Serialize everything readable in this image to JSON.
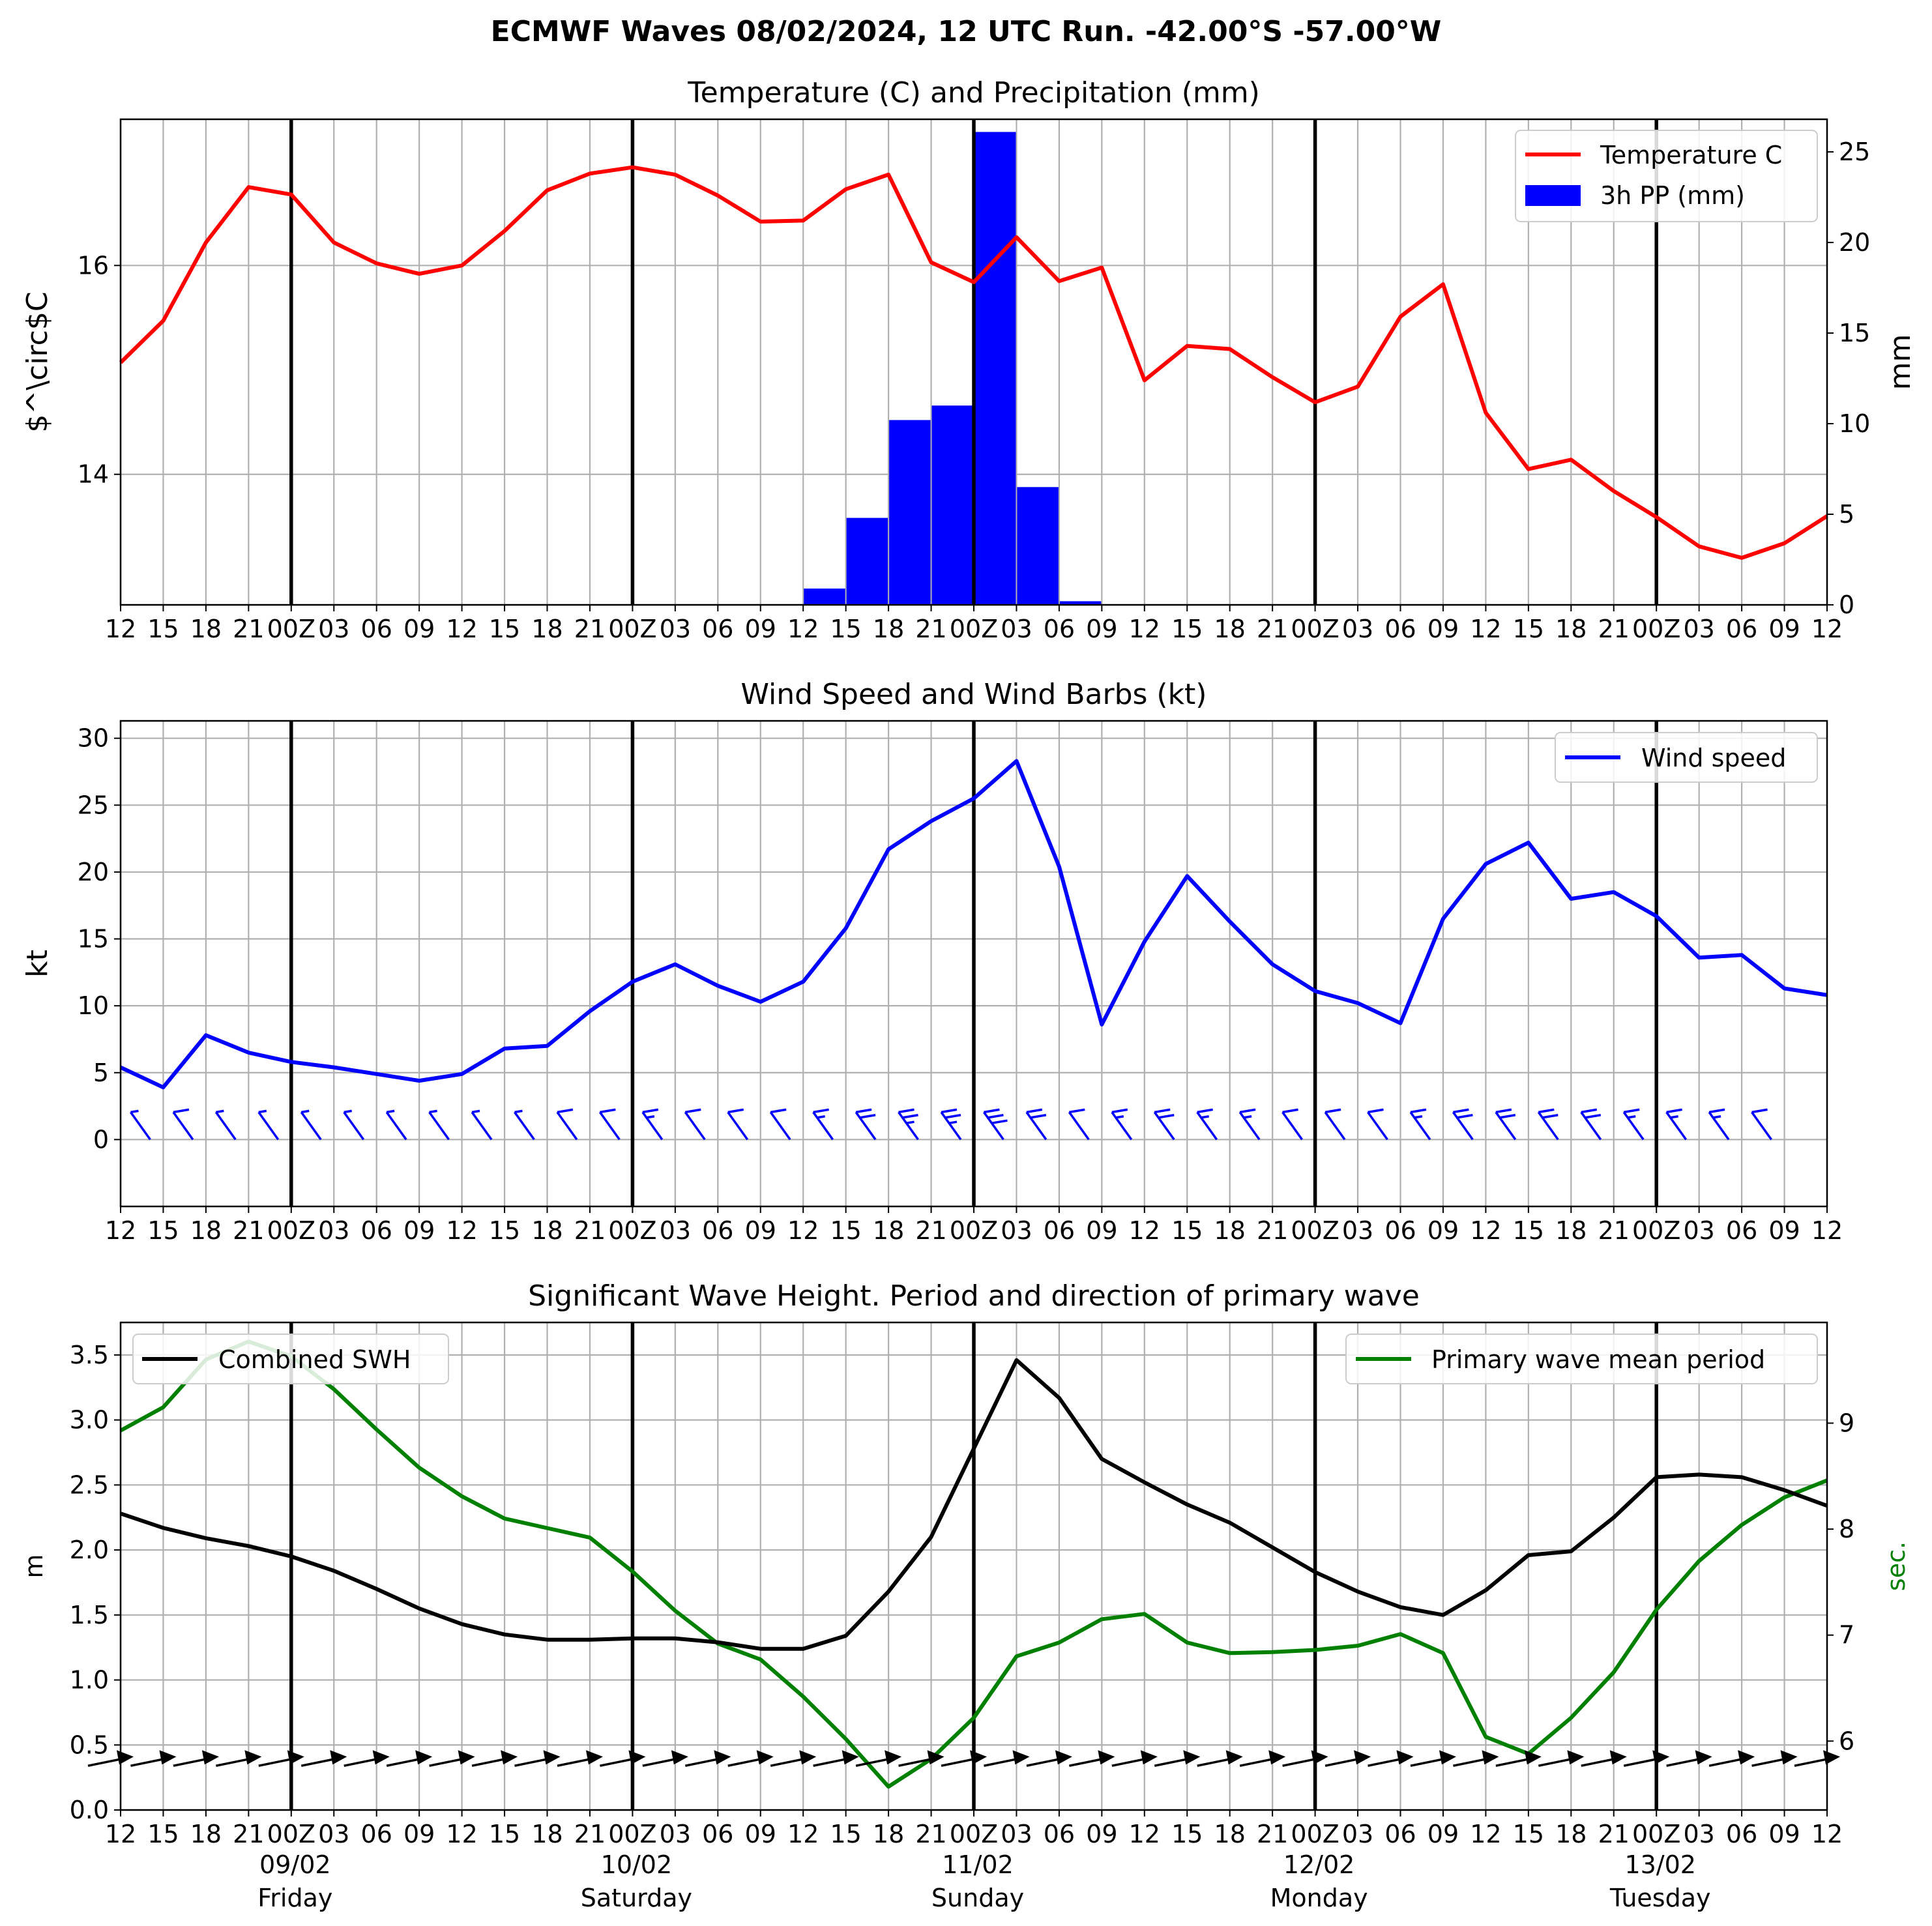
{
  "title": "ECMWF Waves 08/02/2024, 12 UTC Run. -42.00°S -57.00°W",
  "x_tick_labels": [
    "12",
    "15",
    "18",
    "21",
    "00Z",
    "03",
    "06",
    "09",
    "12",
    "15",
    "18",
    "21",
    "00Z",
    "03",
    "06",
    "09",
    "12",
    "15",
    "18",
    "21",
    "00Z",
    "03",
    "06",
    "09",
    "12",
    "15",
    "18",
    "21",
    "00Z",
    "03",
    "06",
    "09",
    "12",
    "15",
    "18",
    "21",
    "00Z",
    "03",
    "06",
    "09",
    "12"
  ],
  "day_labels": [
    {
      "date": "09/02",
      "day": "Friday",
      "index": 4
    },
    {
      "date": "10/02",
      "day": "Saturday",
      "index": 12
    },
    {
      "date": "11/02",
      "day": "Sunday",
      "index": 20
    },
    {
      "date": "12/02",
      "day": "Monday",
      "index": 28
    },
    {
      "date": "13/02",
      "day": "Tuesday",
      "index": 36
    }
  ],
  "midnight_indices": [
    4,
    12,
    20,
    28,
    36
  ],
  "colors": {
    "temperature": "#ff0000",
    "precip": "#0000ff",
    "wind": "#0000ff",
    "swh": "#000000",
    "period": "#008000",
    "grid": "#b0b0b0",
    "midnight": "#000000"
  },
  "chart_data": [
    {
      "type": "line",
      "title": "Temperature (C) and Precipitation (mm)",
      "ylabel": "$^\\circ$C",
      "ylabel_right": "mm",
      "ylim": [
        12.75,
        17.4
      ],
      "ylim_right": [
        0,
        26.8
      ],
      "yticks": [
        14,
        16
      ],
      "yticks_right": [
        0,
        5,
        10,
        15,
        20,
        25
      ],
      "legend_position": "upper right",
      "grid": true,
      "series": [
        {
          "name": "Temperature C",
          "axis": "left",
          "values": [
            15.07,
            15.47,
            16.22,
            16.75,
            16.68,
            16.22,
            16.02,
            15.92,
            16.0,
            16.33,
            16.72,
            16.88,
            16.94,
            16.87,
            16.67,
            16.42,
            16.43,
            16.73,
            16.87,
            16.03,
            15.84,
            16.27,
            15.85,
            15.98,
            14.9,
            15.23,
            15.2,
            14.93,
            14.69,
            14.84,
            15.51,
            15.82,
            14.59,
            14.05,
            14.14,
            13.84,
            13.59,
            13.31,
            13.2,
            13.34,
            13.6
          ]
        },
        {
          "name": "3h PP (mm)",
          "axis": "right",
          "type": "bar",
          "values": [
            0,
            0,
            0,
            0,
            0,
            0,
            0,
            0,
            0,
            0,
            0,
            0,
            0,
            0,
            0,
            0,
            0.9,
            4.8,
            10.2,
            11.0,
            26.1,
            6.5,
            0.2,
            0,
            0,
            0,
            0,
            0,
            0,
            0,
            0,
            0,
            0,
            0,
            0,
            0,
            0,
            0,
            0,
            0
          ]
        }
      ]
    },
    {
      "type": "line",
      "title": "Wind Speed and Wind Barbs (kt)",
      "ylabel": "kt",
      "ylim": [
        -5,
        31.3
      ],
      "yticks": [
        0,
        5,
        10,
        15,
        20,
        25,
        30
      ],
      "legend_position": "upper right",
      "grid": true,
      "series": [
        {
          "name": "Wind speed",
          "values": [
            5.4,
            3.9,
            7.8,
            6.5,
            5.8,
            5.4,
            4.9,
            4.4,
            4.9,
            6.8,
            7.0,
            9.6,
            11.8,
            13.1,
            11.5,
            10.3,
            11.8,
            15.8,
            21.7,
            23.8,
            25.5,
            28.3,
            20.4,
            8.6,
            14.8,
            19.7,
            16.3,
            13.1,
            11.1,
            10.2,
            8.7,
            16.5,
            20.6,
            22.2,
            18.0,
            18.5,
            16.7,
            13.6,
            13.8,
            11.3,
            10.8
          ]
        },
        {
          "name": "wind barb direction",
          "values": [
            0,
            0,
            0,
            0,
            0,
            0,
            0,
            0,
            0,
            0,
            0,
            0,
            0,
            0,
            0,
            0,
            0,
            0,
            0,
            0,
            0,
            0,
            0,
            0,
            0,
            0,
            0,
            0,
            0,
            0,
            0,
            0,
            0,
            0,
            0,
            0,
            0,
            0,
            0,
            0,
            0
          ]
        }
      ]
    },
    {
      "type": "line",
      "title": "Significant Wave Height. Period and direction of primary wave",
      "ylabel": "m",
      "ylabel_right": "sec.",
      "ylim": [
        0,
        3.75
      ],
      "ylim_right": [
        5.35,
        9.95
      ],
      "yticks": [
        0.0,
        0.5,
        1.0,
        1.5,
        2.0,
        2.5,
        3.0,
        3.5
      ],
      "yticks_right": [
        6,
        7,
        8,
        9
      ],
      "legend_position_left": "upper left",
      "legend_position_right": "upper right",
      "grid": true,
      "series": [
        {
          "name": "Combined SWH",
          "axis": "left",
          "values": [
            2.28,
            2.17,
            2.09,
            2.03,
            1.95,
            1.84,
            1.7,
            1.55,
            1.43,
            1.35,
            1.31,
            1.31,
            1.32,
            1.32,
            1.29,
            1.24,
            1.24,
            1.34,
            1.68,
            2.1,
            2.78,
            3.46,
            3.17,
            2.7,
            2.52,
            2.35,
            2.21,
            2.02,
            1.83,
            1.68,
            1.56,
            1.5,
            1.69,
            1.96,
            1.99,
            2.25,
            2.56,
            2.58,
            2.56,
            2.46,
            2.34
          ]
        },
        {
          "name": "Primary wave mean period",
          "axis": "right",
          "values": [
            8.93,
            9.15,
            9.6,
            9.77,
            9.63,
            9.32,
            8.94,
            8.58,
            8.31,
            8.1,
            8.01,
            7.92,
            7.6,
            7.23,
            6.92,
            6.77,
            6.42,
            6.02,
            5.57,
            5.83,
            6.22,
            6.8,
            6.93,
            7.15,
            7.2,
            6.93,
            6.83,
            6.84,
            6.86,
            6.9,
            7.01,
            6.83,
            6.04,
            5.88,
            6.22,
            6.65,
            7.24,
            7.7,
            8.04,
            8.3,
            8.46
          ]
        },
        {
          "name": "primary wave direction",
          "values": [
            0,
            0,
            0,
            0,
            0,
            0,
            0,
            0,
            0,
            0,
            0,
            0,
            0,
            0,
            0,
            0,
            0,
            0,
            0,
            0,
            0,
            0,
            0,
            0,
            0,
            0,
            0,
            0,
            0,
            0,
            0,
            0,
            0,
            0,
            0,
            0,
            0,
            0,
            0,
            0,
            0
          ]
        }
      ]
    }
  ]
}
